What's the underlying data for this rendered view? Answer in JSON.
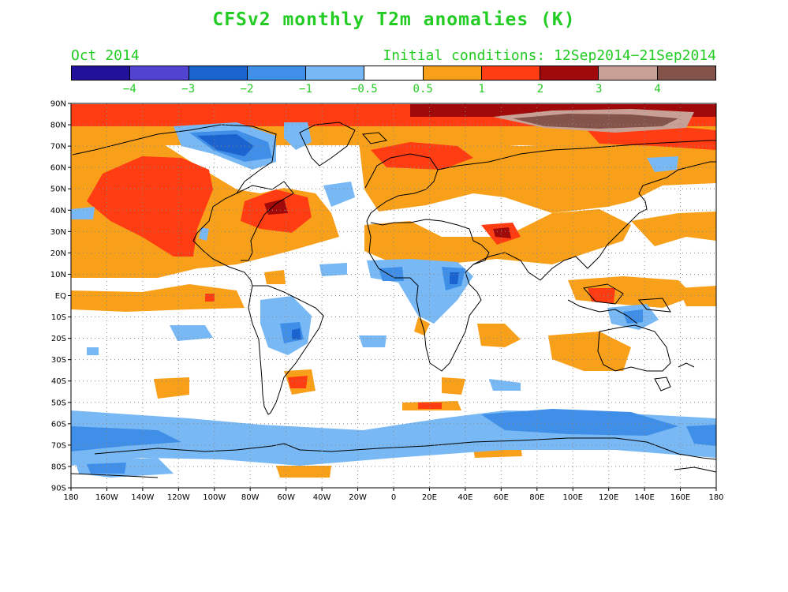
{
  "header": {
    "title": "CFSv2 monthly T2m anomalies (K)",
    "month": "Oct 2014",
    "initial_conditions": "Initial conditions: 12Sep2014−21Sep2014"
  },
  "colorbar": {
    "colors": [
      "#22119a",
      "#5044d0",
      "#1b63cf",
      "#3f8fe8",
      "#78b8f4",
      "#ffffff",
      "#f9a01b",
      "#ff3c12",
      "#a00a0a",
      "#c8a096",
      "#84544a"
    ],
    "labels": [
      "−4",
      "−3",
      "−2",
      "−1",
      "−0.5",
      "0.5",
      "1",
      "2",
      "3",
      "4"
    ]
  },
  "axes": {
    "lat_labels": [
      "90N",
      "80N",
      "70N",
      "60N",
      "50N",
      "40N",
      "30N",
      "20N",
      "10N",
      "EQ",
      "10S",
      "20S",
      "30S",
      "40S",
      "50S",
      "60S",
      "70S",
      "80S",
      "90S"
    ],
    "lon_labels": [
      "180",
      "160W",
      "140W",
      "120W",
      "100W",
      "80W",
      "60W",
      "40W",
      "20W",
      "0",
      "20E",
      "40E",
      "60E",
      "80E",
      "100E",
      "120E",
      "140E",
      "160E",
      "180"
    ]
  }
}
